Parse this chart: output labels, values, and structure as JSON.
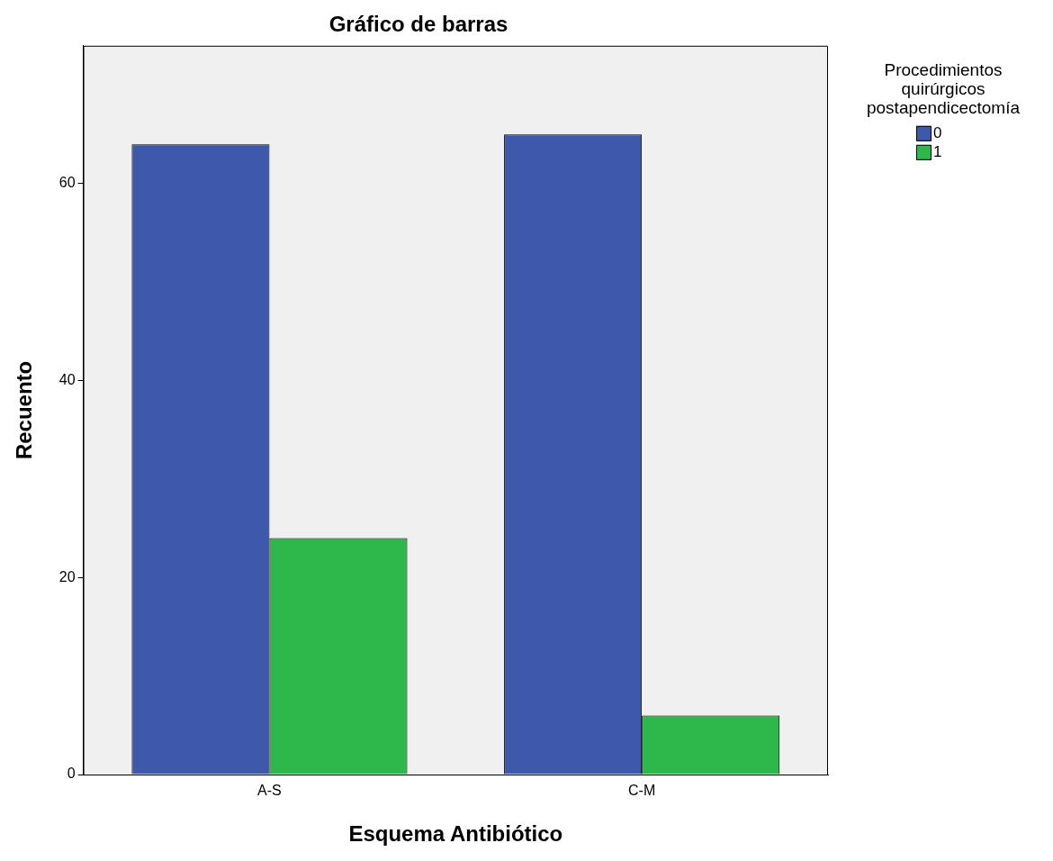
{
  "chart_data": {
    "type": "bar",
    "title": "Gráfico de barras",
    "xlabel": "Esquema Antibiótico",
    "ylabel": "Recuento",
    "legend_title": "Procedimientos quirúrgicos postapendicectomía",
    "categories": [
      "A-S",
      "C-M"
    ],
    "series": [
      {
        "name": "0",
        "color": "#3e58ac",
        "values": [
          64,
          65
        ]
      },
      {
        "name": "1",
        "color": "#2eb74a",
        "values": [
          24,
          6
        ]
      }
    ],
    "ylim": [
      0,
      74
    ],
    "yticks": [
      0,
      20,
      40,
      60
    ],
    "grid": false,
    "legend": "top right"
  }
}
